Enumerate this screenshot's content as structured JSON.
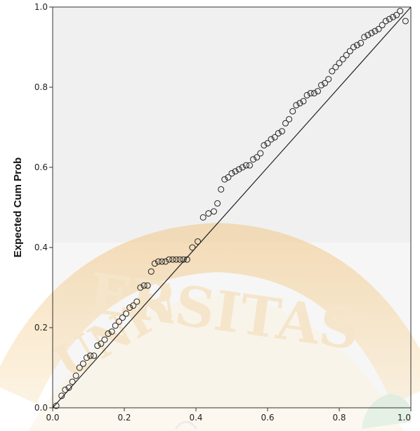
{
  "chart_data": {
    "type": "scatter",
    "title": "",
    "xlabel": "",
    "ylabel": "Expected Cum Prob",
    "xlim": [
      0.0,
      1.0
    ],
    "ylim": [
      0.0,
      1.0
    ],
    "grid": false,
    "x_ticks": [
      "0.0",
      "0.2",
      "0.4",
      "0.6",
      "0.8",
      "1.0"
    ],
    "y_ticks": [
      "0.0",
      "0.2",
      "0.4",
      "0.6",
      "0.8",
      "1.0"
    ],
    "reference_line": {
      "from": [
        0.0,
        0.0
      ],
      "to": [
        1.0,
        1.0
      ]
    },
    "x": [
      0.01,
      0.025,
      0.035,
      0.045,
      0.055,
      0.065,
      0.075,
      0.085,
      0.095,
      0.105,
      0.115,
      0.125,
      0.135,
      0.145,
      0.155,
      0.165,
      0.175,
      0.185,
      0.195,
      0.205,
      0.215,
      0.225,
      0.235,
      0.245,
      0.255,
      0.265,
      0.275,
      0.285,
      0.295,
      0.305,
      0.315,
      0.325,
      0.335,
      0.345,
      0.355,
      0.365,
      0.375,
      0.39,
      0.405,
      0.42,
      0.435,
      0.45,
      0.46,
      0.47,
      0.48,
      0.49,
      0.5,
      0.51,
      0.52,
      0.53,
      0.54,
      0.55,
      0.56,
      0.57,
      0.58,
      0.59,
      0.6,
      0.61,
      0.62,
      0.63,
      0.64,
      0.65,
      0.66,
      0.67,
      0.68,
      0.69,
      0.7,
      0.71,
      0.72,
      0.73,
      0.74,
      0.75,
      0.76,
      0.77,
      0.78,
      0.79,
      0.8,
      0.81,
      0.82,
      0.83,
      0.84,
      0.85,
      0.86,
      0.87,
      0.88,
      0.89,
      0.9,
      0.91,
      0.92,
      0.93,
      0.94,
      0.95,
      0.96,
      0.97,
      0.985
    ],
    "y": [
      0.005,
      0.03,
      0.045,
      0.05,
      0.065,
      0.08,
      0.1,
      0.11,
      0.125,
      0.13,
      0.13,
      0.155,
      0.16,
      0.17,
      0.185,
      0.19,
      0.205,
      0.215,
      0.225,
      0.235,
      0.25,
      0.255,
      0.265,
      0.3,
      0.305,
      0.305,
      0.34,
      0.36,
      0.365,
      0.365,
      0.365,
      0.37,
      0.37,
      0.37,
      0.37,
      0.37,
      0.37,
      0.4,
      0.415,
      0.475,
      0.485,
      0.49,
      0.51,
      0.545,
      0.57,
      0.575,
      0.585,
      0.59,
      0.595,
      0.6,
      0.605,
      0.605,
      0.62,
      0.625,
      0.635,
      0.655,
      0.66,
      0.67,
      0.675,
      0.685,
      0.69,
      0.71,
      0.72,
      0.74,
      0.755,
      0.76,
      0.765,
      0.78,
      0.785,
      0.785,
      0.79,
      0.805,
      0.81,
      0.82,
      0.84,
      0.85,
      0.86,
      0.87,
      0.88,
      0.89,
      0.9,
      0.905,
      0.91,
      0.925,
      0.93,
      0.935,
      0.94,
      0.945,
      0.955,
      0.965,
      0.97,
      0.975,
      0.98,
      0.99,
      0.965
    ]
  }
}
